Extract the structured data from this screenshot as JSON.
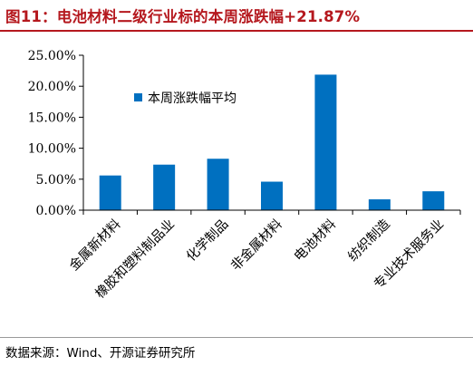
{
  "header": {
    "title": "图11：电池材料二级行业标的本周涨跌幅+21.87%"
  },
  "footer": {
    "source": "数据来源：Wind、开源证券研究所"
  },
  "colors": {
    "title": "#b5181e",
    "bar": "#0070c0",
    "axis": "#000000"
  },
  "chart_data": {
    "type": "bar",
    "categories": [
      "金属新材料",
      "橡胶和塑料制品业",
      "化学制品",
      "非金属材料",
      "电池材料",
      "纺织制造",
      "专业技术服务业"
    ],
    "series": [
      {
        "name": "本周涨跌幅平均",
        "values": [
          5.6,
          7.35,
          8.3,
          4.6,
          21.87,
          1.75,
          3.05
        ]
      }
    ],
    "yticks": [
      "0.00%",
      "5.00%",
      "10.00%",
      "15.00%",
      "20.00%",
      "25.00%"
    ],
    "ylim": [
      0,
      25
    ],
    "grid": false,
    "legend": "top-left-inside"
  }
}
